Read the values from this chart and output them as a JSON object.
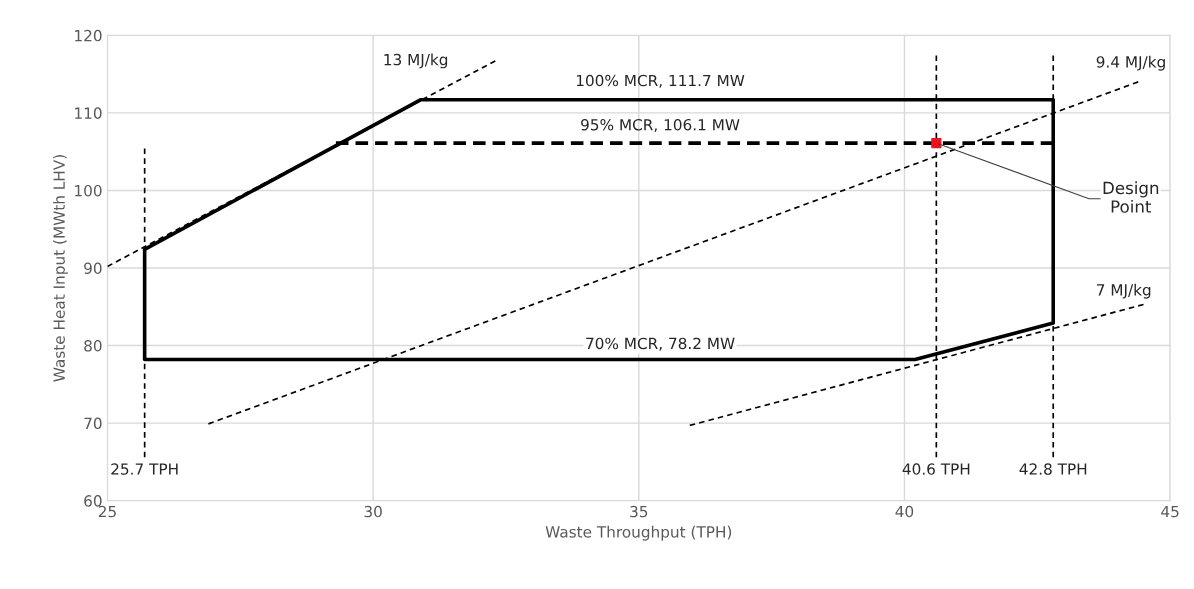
{
  "chart_data": {
    "type": "line",
    "xlabel": "Waste Throughput (TPH)",
    "ylabel": "Waste Heat Input (MWth LHV)",
    "xlim": [
      25,
      45
    ],
    "ylim": [
      60,
      120
    ],
    "xticks": [
      25,
      30,
      35,
      40,
      45
    ],
    "yticks": [
      60,
      70,
      80,
      90,
      100,
      110,
      120
    ],
    "grid": true,
    "marker": "none",
    "series": [
      {
        "color": "#000000",
        "line_style": "solid",
        "x": [
          35.0,
          25.7,
          25.7,
          30.9,
          42.8,
          42.8,
          40.2,
          34.8
        ],
        "values": [
          78.2,
          78.2,
          92.4,
          111.7,
          111.7,
          82.9,
          78.2,
          78.2
        ]
      },
      {
        "color": "#000000",
        "line_style": "dashed",
        "x": [
          29.3,
          42.8
        ],
        "values": [
          106.1,
          106.1
        ]
      },
      {
        "color": "#000000",
        "line_style": "dotted",
        "x": [
          25.0,
          32.3
        ],
        "values": [
          90.2,
          116.7
        ]
      },
      {
        "color": "#000000",
        "line_style": "dotted",
        "x": [
          26.9,
          44.4
        ],
        "values": [
          69.9,
          114.0
        ]
      },
      {
        "color": "#000000",
        "line_style": "dotted",
        "x": [
          35.96,
          44.5
        ],
        "values": [
          69.7,
          85.3
        ]
      },
      {
        "color": "#000000",
        "line_style": "dotted",
        "x": [
          25.7,
          25.7
        ],
        "values": [
          65.6,
          105.4
        ]
      },
      {
        "color": "#000000",
        "line_style": "dotted",
        "x": [
          40.6,
          40.6
        ],
        "values": [
          65.6,
          117.4
        ]
      },
      {
        "color": "#000000",
        "line_style": "dotted",
        "x": [
          42.8,
          42.8
        ],
        "values": [
          65.6,
          117.4
        ]
      },
      {
        "type": "scatter",
        "marker": "square",
        "color": "#e8141c",
        "x": [
          40.6
        ],
        "values": [
          106.1
        ]
      }
    ],
    "annotations": [
      "13 MJ/kg",
      "100% MCR, 111.7 MW",
      "95% MCR, 106.1 MW",
      "70% MCR, 78.2 MW",
      "9.4 MJ/kg",
      "7 MJ/kg",
      "25.7 TPH",
      "40.6 TPH",
      "42.8 TPH",
      {
        "text": "Design\nPoint",
        "x": 40.6,
        "y": 106.1
      }
    ]
  }
}
